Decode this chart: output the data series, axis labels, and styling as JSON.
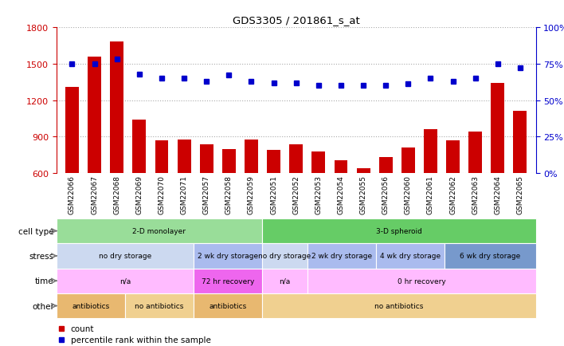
{
  "title": "GDS3305 / 201861_s_at",
  "samples": [
    "GSM22066",
    "GSM22067",
    "GSM22068",
    "GSM22069",
    "GSM22070",
    "GSM22071",
    "GSM22057",
    "GSM22058",
    "GSM22059",
    "GSM22051",
    "GSM22052",
    "GSM22053",
    "GSM22054",
    "GSM22055",
    "GSM22056",
    "GSM22060",
    "GSM22061",
    "GSM22062",
    "GSM22063",
    "GSM22064",
    "GSM22065"
  ],
  "counts": [
    1310,
    1560,
    1680,
    1040,
    870,
    880,
    840,
    800,
    880,
    790,
    840,
    780,
    710,
    640,
    730,
    810,
    960,
    870,
    940,
    1340,
    1110
  ],
  "percentiles": [
    75,
    75,
    78,
    68,
    65,
    65,
    63,
    67,
    63,
    62,
    62,
    60,
    60,
    60,
    60,
    61,
    65,
    63,
    65,
    75,
    72
  ],
  "ylim_left": [
    600,
    1800
  ],
  "ylim_right": [
    0,
    100
  ],
  "yticks_left": [
    600,
    900,
    1200,
    1500,
    1800
  ],
  "yticks_right": [
    0,
    25,
    50,
    75,
    100
  ],
  "bar_color": "#cc0000",
  "dot_color": "#0000cc",
  "grid_color": "#aaaaaa",
  "cell_type_row": {
    "label": "cell type",
    "groups": [
      {
        "text": "2-D monolayer",
        "start": 0,
        "end": 9,
        "color": "#99dd99"
      },
      {
        "text": "3-D spheroid",
        "start": 9,
        "end": 21,
        "color": "#66cc66"
      }
    ]
  },
  "stress_row": {
    "label": "stress",
    "groups": [
      {
        "text": "no dry storage",
        "start": 0,
        "end": 6,
        "color": "#ccd9f0"
      },
      {
        "text": "2 wk dry storage",
        "start": 6,
        "end": 9,
        "color": "#aabbee"
      },
      {
        "text": "no dry storage",
        "start": 9,
        "end": 11,
        "color": "#ccd9f0"
      },
      {
        "text": "2 wk dry storage",
        "start": 11,
        "end": 14,
        "color": "#aabbee"
      },
      {
        "text": "4 wk dry storage",
        "start": 14,
        "end": 17,
        "color": "#aabbee"
      },
      {
        "text": "6 wk dry storage",
        "start": 17,
        "end": 21,
        "color": "#7799cc"
      }
    ]
  },
  "time_row": {
    "label": "time",
    "groups": [
      {
        "text": "n/a",
        "start": 0,
        "end": 6,
        "color": "#ffbbff"
      },
      {
        "text": "72 hr recovery",
        "start": 6,
        "end": 9,
        "color": "#ee66ee"
      },
      {
        "text": "n/a",
        "start": 9,
        "end": 11,
        "color": "#ffbbff"
      },
      {
        "text": "0 hr recovery",
        "start": 11,
        "end": 21,
        "color": "#ffbbff"
      }
    ]
  },
  "other_row": {
    "label": "other",
    "groups": [
      {
        "text": "antibiotics",
        "start": 0,
        "end": 3,
        "color": "#e8b870"
      },
      {
        "text": "no antibiotics",
        "start": 3,
        "end": 6,
        "color": "#f0d090"
      },
      {
        "text": "antibiotics",
        "start": 6,
        "end": 9,
        "color": "#e8b870"
      },
      {
        "text": "no antibiotics",
        "start": 9,
        "end": 21,
        "color": "#f0d090"
      }
    ]
  },
  "legend_items": [
    {
      "color": "#cc0000",
      "label": "count"
    },
    {
      "color": "#0000cc",
      "label": "percentile rank within the sample"
    }
  ],
  "row_label_color": "#777777",
  "tick_bg_color": "#dddddd"
}
